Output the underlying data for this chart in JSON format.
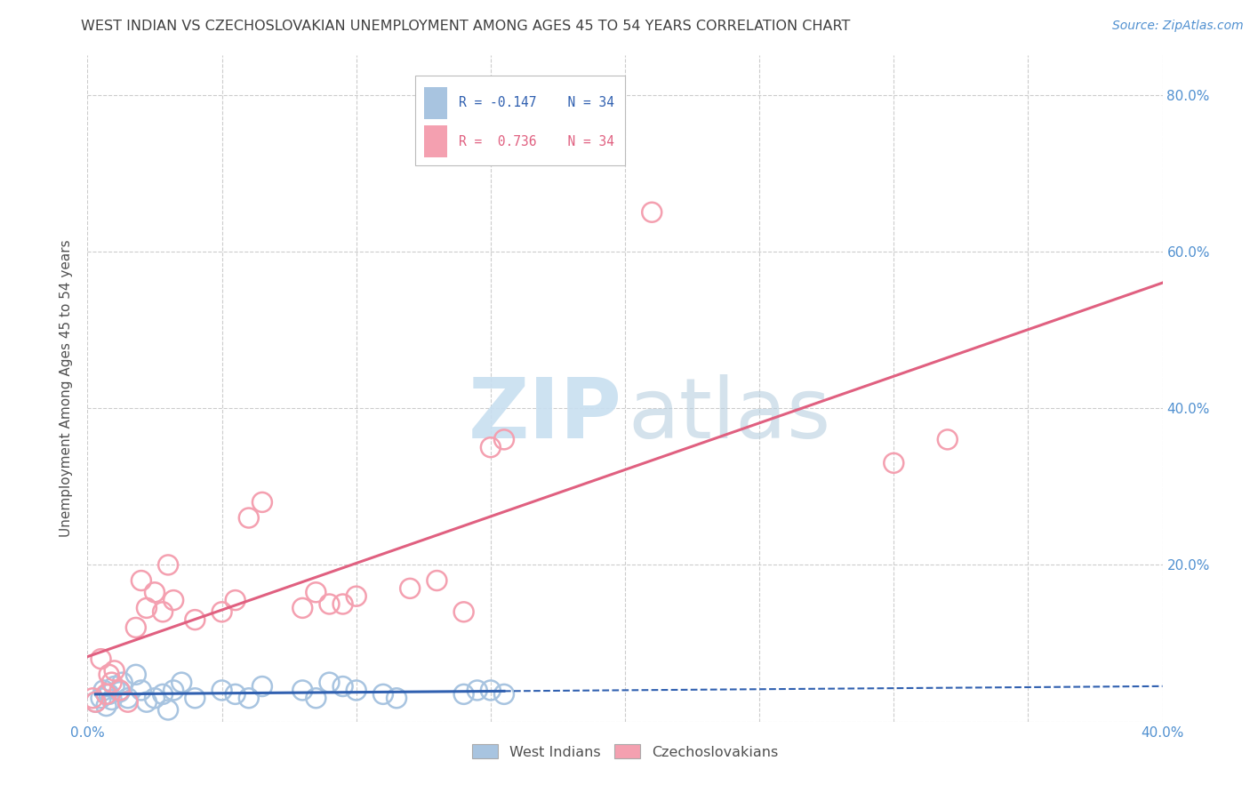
{
  "title": "WEST INDIAN VS CZECHOSLOVAKIAN UNEMPLOYMENT AMONG AGES 45 TO 54 YEARS CORRELATION CHART",
  "source": "Source: ZipAtlas.com",
  "ylabel": "Unemployment Among Ages 45 to 54 years",
  "xlim": [
    0.0,
    0.4
  ],
  "ylim": [
    0.0,
    0.85
  ],
  "xticks": [
    0.0,
    0.05,
    0.1,
    0.15,
    0.2,
    0.25,
    0.3,
    0.35,
    0.4
  ],
  "yticks": [
    0.0,
    0.2,
    0.4,
    0.6,
    0.8
  ],
  "legend_r_wi": "R = -0.147",
  "legend_n_wi": "N = 34",
  "legend_r_cz": "R =  0.736",
  "legend_n_cz": "N = 34",
  "wi_color": "#a8c4e0",
  "cz_color": "#f4a0b0",
  "wi_line_color": "#3060b0",
  "cz_line_color": "#e06080",
  "background_color": "#ffffff",
  "grid_color": "#cccccc",
  "title_color": "#404040",
  "label_color": "#505050",
  "tick_color_right": "#5090d0",
  "wi_scatter": {
    "x": [
      0.003,
      0.005,
      0.006,
      0.007,
      0.008,
      0.009,
      0.01,
      0.012,
      0.013,
      0.015,
      0.018,
      0.02,
      0.022,
      0.025,
      0.028,
      0.03,
      0.032,
      0.035,
      0.04,
      0.05,
      0.055,
      0.06,
      0.065,
      0.08,
      0.085,
      0.09,
      0.095,
      0.1,
      0.11,
      0.115,
      0.14,
      0.145,
      0.15,
      0.155
    ],
    "y": [
      0.025,
      0.03,
      0.04,
      0.02,
      0.035,
      0.028,
      0.045,
      0.038,
      0.05,
      0.03,
      0.06,
      0.04,
      0.025,
      0.03,
      0.035,
      0.015,
      0.04,
      0.05,
      0.03,
      0.04,
      0.035,
      0.03,
      0.045,
      0.04,
      0.03,
      0.05,
      0.045,
      0.04,
      0.035,
      0.03,
      0.035,
      0.04,
      0.04,
      0.035
    ]
  },
  "cz_scatter": {
    "x": [
      0.002,
      0.003,
      0.005,
      0.007,
      0.008,
      0.009,
      0.01,
      0.012,
      0.015,
      0.018,
      0.02,
      0.022,
      0.025,
      0.028,
      0.03,
      0.032,
      0.04,
      0.05,
      0.055,
      0.06,
      0.065,
      0.08,
      0.085,
      0.09,
      0.095,
      0.1,
      0.12,
      0.13,
      0.14,
      0.15,
      0.155,
      0.21,
      0.3,
      0.32
    ],
    "y": [
      0.03,
      0.025,
      0.08,
      0.035,
      0.06,
      0.05,
      0.065,
      0.04,
      0.025,
      0.12,
      0.18,
      0.145,
      0.165,
      0.14,
      0.2,
      0.155,
      0.13,
      0.14,
      0.155,
      0.26,
      0.28,
      0.145,
      0.165,
      0.15,
      0.15,
      0.16,
      0.17,
      0.18,
      0.14,
      0.35,
      0.36,
      0.65,
      0.33,
      0.36
    ]
  }
}
